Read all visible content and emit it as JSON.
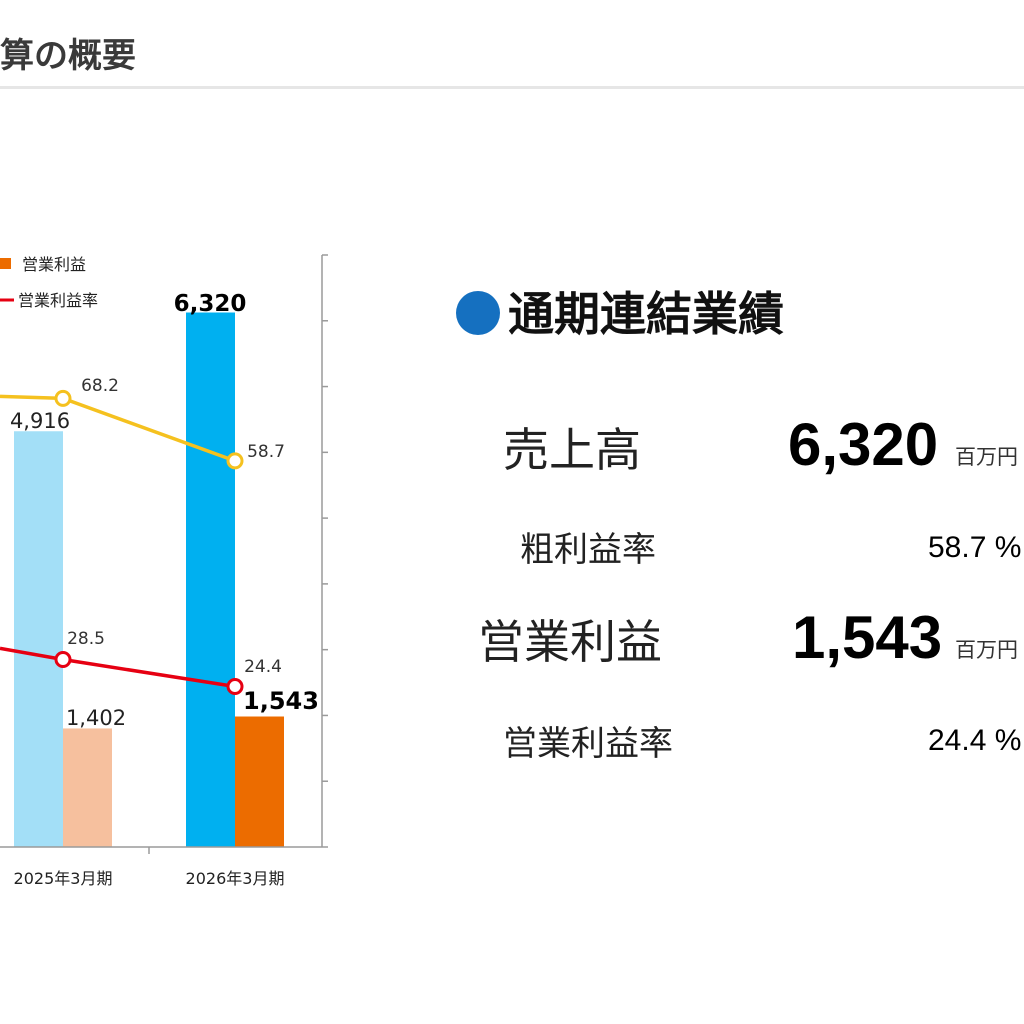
{
  "page": {
    "title": "算の概要"
  },
  "chart_data": {
    "type": "bar",
    "categories": [
      "2025年3月期",
      "2026年3月期"
    ],
    "series": [
      {
        "type": "bar",
        "values": [
          4916,
          6320
        ],
        "colors": [
          "#a3dff7",
          "#00b0f0"
        ]
      },
      {
        "name": "営業利益",
        "type": "bar",
        "values": [
          1402,
          1543
        ],
        "colors": [
          "#f6c09e",
          "#ec6c00"
        ]
      },
      {
        "type": "line",
        "axis": "right",
        "values": [
          68.2,
          58.7
        ],
        "color": "#f5c11f"
      },
      {
        "name": "営業利益率",
        "type": "line",
        "axis": "right",
        "values": [
          28.5,
          24.4
        ],
        "color": "#e60012"
      }
    ],
    "bar_labels": [
      "4,916",
      "6,320",
      "1,402",
      "1,543"
    ],
    "line_labels": [
      "68.2",
      "58.7",
      "28.5",
      "24.4"
    ],
    "y2_unit": "（%）",
    "y2lim": [
      0,
      90
    ],
    "y2_ticks": [
      0,
      10,
      20,
      30,
      40,
      50,
      60,
      70,
      80,
      90
    ],
    "legend_position": "top-left"
  },
  "summary": {
    "heading": "通期連結業績",
    "sales_label": "売上高",
    "sales_value": "6,320",
    "sales_unit": "百万円",
    "gross_margin_label": "粗利益率",
    "gross_margin_value": "58.7 %",
    "op_income_label": "営業利益",
    "op_income_value": "1,543",
    "op_income_unit": "百万円",
    "op_margin_label": "営業利益率",
    "op_margin_value": "24.4 %"
  }
}
